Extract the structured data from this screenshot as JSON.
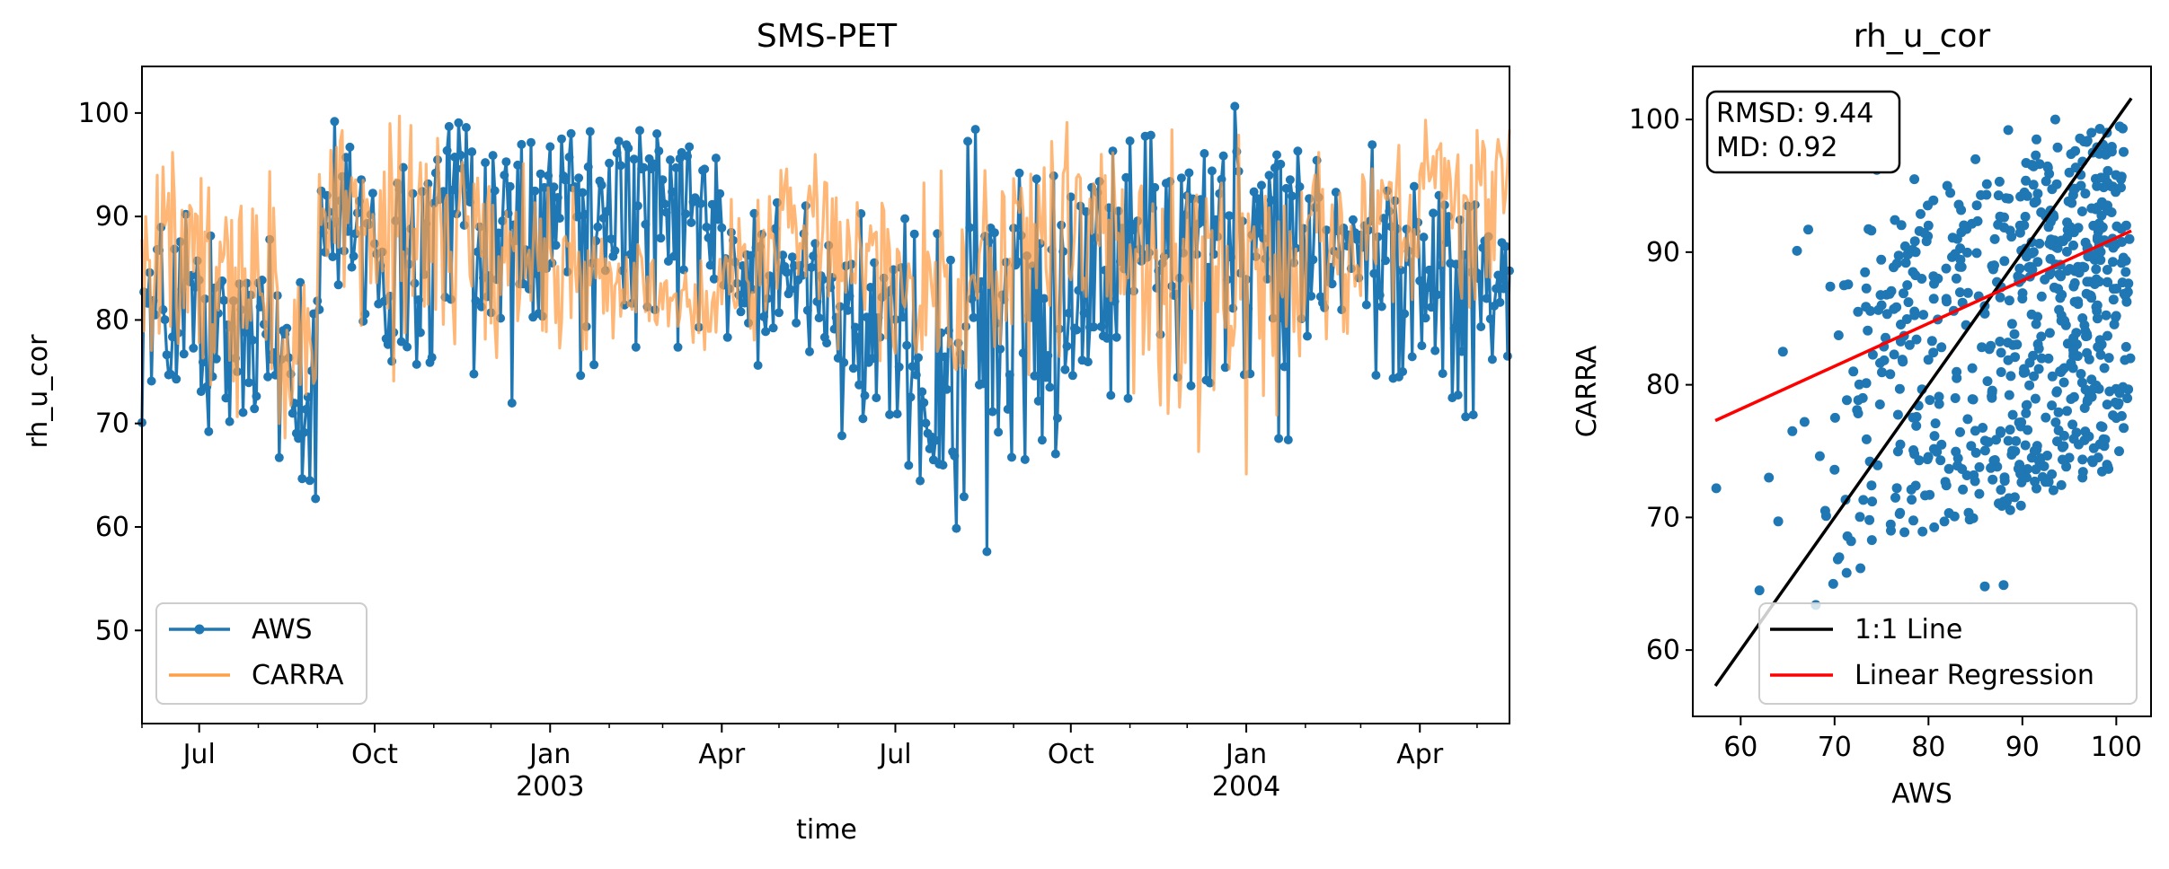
{
  "chart_data": [
    {
      "type": "line",
      "title": "SMS-PET",
      "xlabel": "time",
      "ylabel": "rh_u_cor",
      "xlim": [
        "2002-06-01",
        "2004-05-18"
      ],
      "ylim": [
        41,
        104.5
      ],
      "yticks": [
        50,
        60,
        70,
        80,
        90,
        100
      ],
      "xticks": [
        {
          "date": "2002-07-01",
          "label": "Jul",
          "sublabel": ""
        },
        {
          "date": "2002-10-01",
          "label": "Oct",
          "sublabel": ""
        },
        {
          "date": "2003-01-01",
          "label": "Jan",
          "sublabel": "2003"
        },
        {
          "date": "2003-04-01",
          "label": "Apr",
          "sublabel": ""
        },
        {
          "date": "2003-07-01",
          "label": "Jul",
          "sublabel": ""
        },
        {
          "date": "2003-10-01",
          "label": "Oct",
          "sublabel": ""
        },
        {
          "date": "2004-01-01",
          "label": "Jan",
          "sublabel": "2004"
        },
        {
          "date": "2004-04-01",
          "label": "Apr",
          "sublabel": ""
        }
      ],
      "legend_position": "lower-left",
      "grid": false,
      "series": [
        {
          "name": "AWS",
          "color": "#1f77b4",
          "marker": "circle",
          "monthly": [
            {
              "month": "2002-06",
              "mean": 81,
              "min": 70,
              "max": 93
            },
            {
              "month": "2002-07",
              "mean": 78,
              "min": 67,
              "max": 92
            },
            {
              "month": "2002-08",
              "mean": 77,
              "min": 62,
              "max": 91
            },
            {
              "month": "2002-09",
              "mean": 88,
              "min": 70,
              "max": 100
            },
            {
              "month": "2002-10",
              "mean": 85,
              "min": 63,
              "max": 101
            },
            {
              "month": "2002-11",
              "mean": 90,
              "min": 69,
              "max": 101
            },
            {
              "month": "2002-12",
              "mean": 89,
              "min": 67,
              "max": 100
            },
            {
              "month": "2003-01",
              "mean": 91,
              "min": 74,
              "max": 100
            },
            {
              "month": "2003-02",
              "mean": 91,
              "min": 76,
              "max": 100
            },
            {
              "month": "2003-03",
              "mean": 90,
              "min": 75,
              "max": 98
            },
            {
              "month": "2003-04",
              "mean": 84,
              "min": 75,
              "max": 93
            },
            {
              "month": "2003-05",
              "mean": 83,
              "min": 76,
              "max": 92
            },
            {
              "month": "2003-06",
              "mean": 79,
              "min": 67,
              "max": 91
            },
            {
              "month": "2003-07",
              "mean": 73,
              "min": 63,
              "max": 90
            },
            {
              "month": "2003-08",
              "mean": 78,
              "min": 57,
              "max": 99
            },
            {
              "month": "2003-09",
              "mean": 82,
              "min": 66,
              "max": 97
            },
            {
              "month": "2003-10",
              "mean": 86,
              "min": 72,
              "max": 101
            },
            {
              "month": "2003-11",
              "mean": 90,
              "min": 72,
              "max": 101
            },
            {
              "month": "2003-12",
              "mean": 89,
              "min": 70,
              "max": 101
            },
            {
              "month": "2004-01",
              "mean": 88,
              "min": 68,
              "max": 97
            },
            {
              "month": "2004-02",
              "mean": 87,
              "min": 75,
              "max": 99
            },
            {
              "month": "2004-03",
              "mean": 86,
              "min": 73,
              "max": 98
            },
            {
              "month": "2004-04",
              "mean": 84,
              "min": 70,
              "max": 96
            },
            {
              "month": "2004-05",
              "mean": 82,
              "min": 69,
              "max": 93
            }
          ]
        },
        {
          "name": "CARRA",
          "color": "#ff9f4a",
          "marker": "none",
          "monthly": [
            {
              "month": "2002-06",
              "mean": 86,
              "min": 76,
              "max": 100
            },
            {
              "month": "2002-07",
              "mean": 82,
              "min": 67,
              "max": 98
            },
            {
              "month": "2002-08",
              "mean": 78,
              "min": 64,
              "max": 96
            },
            {
              "month": "2002-09",
              "mean": 90,
              "min": 75,
              "max": 100
            },
            {
              "month": "2002-10",
              "mean": 88,
              "min": 73,
              "max": 100
            },
            {
              "month": "2002-11",
              "mean": 88,
              "min": 77,
              "max": 98
            },
            {
              "month": "2002-12",
              "mean": 86,
              "min": 76,
              "max": 96
            },
            {
              "month": "2003-01",
              "mean": 84,
              "min": 77,
              "max": 93
            },
            {
              "month": "2003-02",
              "mean": 83,
              "min": 77,
              "max": 90
            },
            {
              "month": "2003-03",
              "mean": 81,
              "min": 77,
              "max": 86
            },
            {
              "month": "2003-04",
              "mean": 85,
              "min": 78,
              "max": 92
            },
            {
              "month": "2003-05",
              "mean": 89,
              "min": 80,
              "max": 98
            },
            {
              "month": "2003-06",
              "mean": 86,
              "min": 76,
              "max": 98
            },
            {
              "month": "2003-07",
              "mean": 82,
              "min": 75,
              "max": 96
            },
            {
              "month": "2003-08",
              "mean": 84,
              "min": 74,
              "max": 98
            },
            {
              "month": "2003-09",
              "mean": 88,
              "min": 74,
              "max": 100
            },
            {
              "month": "2003-10",
              "mean": 88,
              "min": 78,
              "max": 100
            },
            {
              "month": "2003-11",
              "mean": 85,
              "min": 70,
              "max": 99
            },
            {
              "month": "2003-12",
              "mean": 84,
              "min": 65,
              "max": 98
            },
            {
              "month": "2004-01",
              "mean": 85,
              "min": 64,
              "max": 96
            },
            {
              "month": "2004-02",
              "mean": 88,
              "min": 78,
              "max": 97
            },
            {
              "month": "2004-03",
              "mean": 90,
              "min": 80,
              "max": 99
            },
            {
              "month": "2004-04",
              "mean": 91,
              "min": 78,
              "max": 100
            },
            {
              "month": "2004-05",
              "mean": 94,
              "min": 84,
              "max": 100
            }
          ]
        }
      ]
    },
    {
      "type": "scatter",
      "title": "rh_u_cor",
      "xlabel": "AWS",
      "ylabel": "CARRA",
      "xlim": [
        54.9,
        103.7
      ],
      "ylim": [
        55,
        104
      ],
      "xticks": [
        60,
        70,
        80,
        90,
        100
      ],
      "yticks": [
        60,
        70,
        80,
        90,
        100
      ],
      "points_color": "#1f77b4",
      "points": [
        [
          57.4,
          72.2
        ],
        [
          62,
          64.5
        ],
        [
          63,
          73
        ],
        [
          64,
          69.7
        ],
        [
          64.5,
          82.5
        ],
        [
          65.5,
          76.5
        ],
        [
          66,
          90.1
        ],
        [
          66.8,
          77.2
        ],
        [
          67.2,
          91.7
        ],
        [
          68,
          63.4
        ],
        [
          69,
          70.5
        ],
        [
          70,
          73.6
        ],
        [
          70.5,
          67
        ],
        [
          71,
          87.5
        ],
        [
          72,
          81
        ],
        [
          73,
          79
        ],
        [
          74,
          71.2
        ],
        [
          75,
          86
        ],
        [
          76,
          69
        ],
        [
          77,
          75.5
        ],
        [
          78,
          83
        ],
        [
          79,
          74.3
        ],
        [
          80,
          92
        ],
        [
          81,
          88
        ],
        [
          82,
          95
        ],
        [
          83,
          80.5
        ],
        [
          84,
          84.5
        ],
        [
          85,
          97
        ],
        [
          86,
          64.8
        ],
        [
          87,
          89
        ],
        [
          88,
          64.9
        ],
        [
          88.5,
          99.2
        ],
        [
          89,
          83
        ],
        [
          90,
          86.5
        ],
        [
          91,
          74.5
        ],
        [
          92,
          93
        ],
        [
          93,
          88.5
        ],
        [
          94,
          81
        ],
        [
          95,
          96
        ],
        [
          96,
          75.5
        ],
        [
          97,
          90
        ],
        [
          98,
          85
        ],
        [
          99,
          99
        ],
        [
          100,
          77.5
        ],
        [
          100.5,
          95.5
        ],
        [
          101,
          88.5
        ],
        [
          101.5,
          82
        ],
        [
          91.5,
          98.5
        ],
        [
          93.5,
          100
        ],
        [
          95.5,
          91.5
        ],
        [
          97.5,
          97.5
        ],
        [
          99.5,
          93
        ],
        [
          83.5,
          91.5
        ],
        [
          78.5,
          95.5
        ],
        [
          74.5,
          96.2
        ],
        [
          72.5,
          85.5
        ]
      ],
      "fit_lines": [
        {
          "name": "1:1 Line",
          "color": "#000000",
          "x": [
            57.3,
            101.6
          ],
          "y": [
            57.3,
            101.6
          ]
        },
        {
          "name": "Linear Regression",
          "color": "#ff0000",
          "x": [
            57.3,
            101.6
          ],
          "y": [
            77.3,
            91.6
          ]
        }
      ],
      "stats_box": [
        "RMSD: 9.44",
        "MD: 0.92"
      ],
      "legend_position": "lower-right",
      "grid": false
    }
  ]
}
